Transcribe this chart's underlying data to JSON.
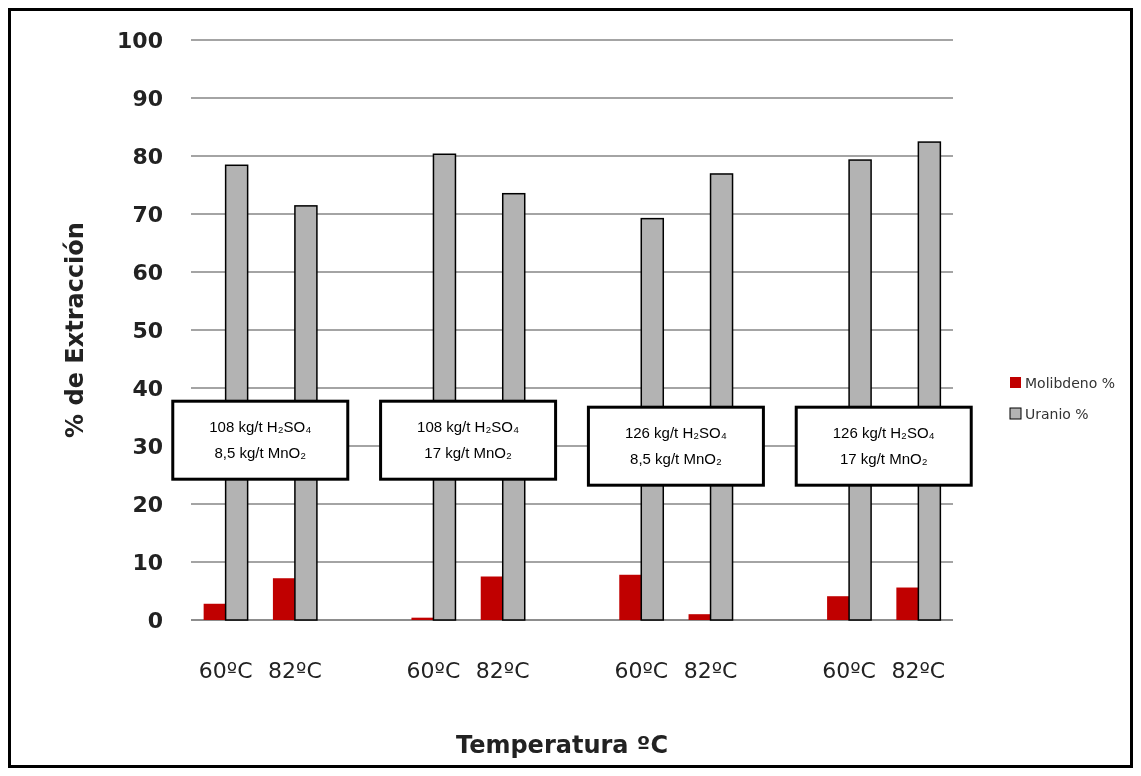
{
  "chart_data": {
    "type": "bar",
    "xlabel": "Temperatura ºC",
    "ylabel": "% de Extracción",
    "categories": [
      "60ºC",
      "82ºC",
      null,
      "60ºC",
      "82ºC",
      null,
      "60ºC",
      "82ºC",
      null,
      "60ºC",
      "82ºC"
    ],
    "series": [
      {
        "name": "Molibdeno %",
        "color": "#c00000",
        "values": [
          2.8,
          7.2,
          null,
          0.4,
          7.5,
          null,
          7.8,
          1.0,
          null,
          4.1,
          5.6
        ]
      },
      {
        "name": "Uranio %",
        "color": "#b3b3b3",
        "values": [
          78.4,
          71.4,
          null,
          80.3,
          73.5,
          null,
          69.2,
          76.9,
          null,
          79.3,
          82.4
        ]
      }
    ],
    "ylim": [
      0,
      100
    ],
    "yticks": [
      0,
      10,
      20,
      30,
      40,
      50,
      60,
      70,
      80,
      90,
      100
    ],
    "grid": "y",
    "legend": "right",
    "annotations": [
      "108 kg/t H₂SO₄\n8,5 kg/t MnO₂",
      "108 kg/t H₂SO₄\n17 kg/t MnO₂",
      "126 kg/t H₂SO₄\n8,5 kg/t MnO₂",
      "126 kg/t H₂SO₄\n17 kg/t MnO₂"
    ]
  }
}
